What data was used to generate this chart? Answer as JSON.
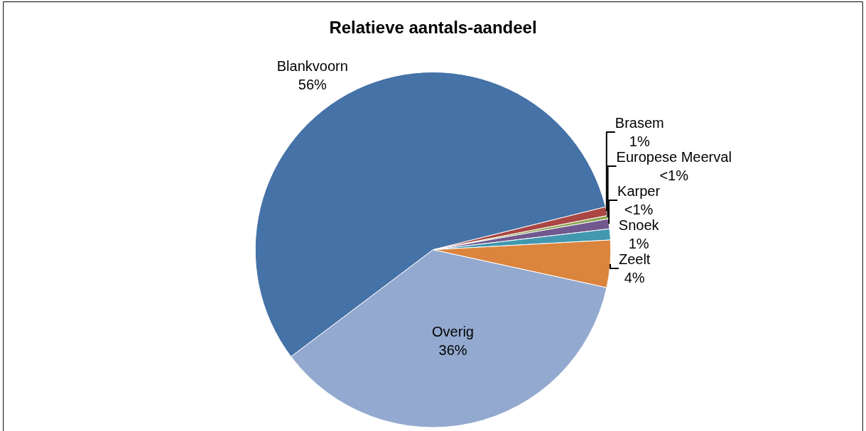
{
  "chart_data": {
    "type": "pie",
    "title": "Relatieve aantals-aandeel",
    "categories": [
      "Blankvoorn",
      "Brasem",
      "Europese Meerval",
      "Karper",
      "Snoek",
      "Zeelt",
      "Overig"
    ],
    "values": [
      56.4,
      0.8,
      0.3,
      0.9,
      1.0,
      4.3,
      36.3
    ],
    "value_labels": [
      "56%",
      "1%",
      "<1%",
      "<1%",
      "1%",
      "4%",
      "36%"
    ],
    "colors": [
      "#4572a7",
      "#aa4643",
      "#89a54e",
      "#71588f",
      "#4198af",
      "#db843d",
      "#93a9cf"
    ],
    "legend": false
  }
}
